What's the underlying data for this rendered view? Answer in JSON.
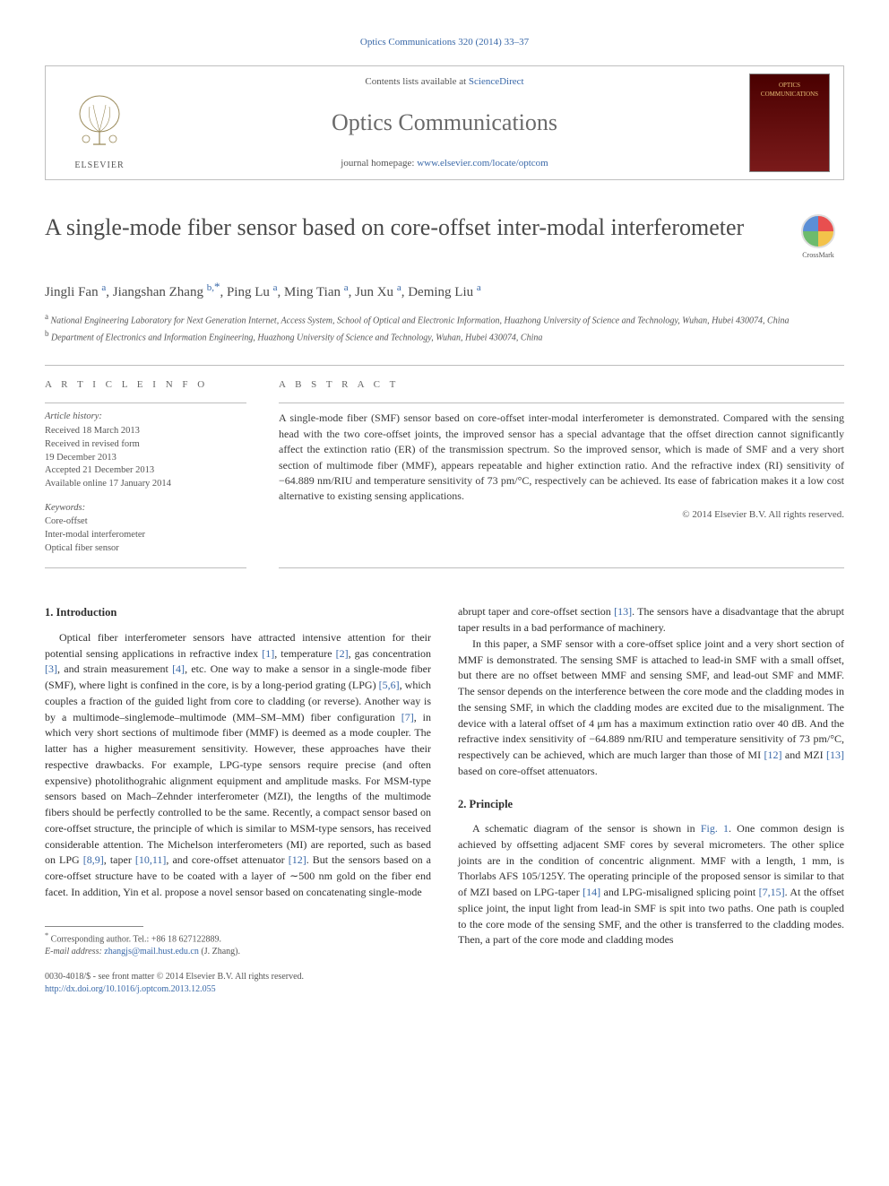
{
  "top_citation": "Optics Communications 320 (2014) 33–37",
  "header": {
    "contents_prefix": "Contents lists available at ",
    "contents_link": "ScienceDirect",
    "journal": "Optics Communications",
    "homepage_prefix": "journal homepage: ",
    "homepage_link": "www.elsevier.com/locate/optcom",
    "publisher": "ELSEVIER",
    "cover_label": "OPTICS COMMUNICATIONS"
  },
  "crossmark": "CrossMark",
  "title": "A single-mode fiber sensor based on core-offset inter-modal interferometer",
  "authors_html": "Jingli Fan <sup class='aff'>a</sup>, Jiangshan Zhang <sup class='aff'>b,</sup><sup class='corr'>*</sup>, Ping Lu <sup class='aff'>a</sup>, Ming Tian <sup class='aff'>a</sup>, Jun Xu <sup class='aff'>a</sup>, Deming Liu <sup class='aff'>a</sup>",
  "affiliations": {
    "a": "National Engineering Laboratory for Next Generation Internet, Access System, School of Optical and Electronic Information, Huazhong University of Science and Technology, Wuhan, Hubei 430074, China",
    "b": "Department of Electronics and Information Engineering, Huazhong University of Science and Technology, Wuhan, Hubei 430074, China"
  },
  "article_info": {
    "heading": "A R T I C L E  I N F O",
    "history_label": "Article history:",
    "history": [
      "Received 18 March 2013",
      "Received in revised form",
      "19 December 2013",
      "Accepted 21 December 2013",
      "Available online 17 January 2014"
    ],
    "keywords_label": "Keywords:",
    "keywords": [
      "Core-offset",
      "Inter-modal interferometer",
      "Optical fiber sensor"
    ]
  },
  "abstract": {
    "heading": "A B S T R A C T",
    "text": "A single-mode fiber (SMF) sensor based on core-offset inter-modal interferometer is demonstrated. Compared with the sensing head with the two core-offset joints, the improved sensor has a special advantage that the offset direction cannot significantly affect the extinction ratio (ER) of the transmission spectrum. So the improved sensor, which is made of SMF and a very short section of multimode fiber (MMF), appears repeatable and higher extinction ratio. And the refractive index (RI) sensitivity of −64.889 nm/RIU and temperature sensitivity of 73 pm/°C, respectively can be achieved. Its ease of fabrication makes it a low cost alternative to existing sensing applications.",
    "copyright": "© 2014 Elsevier B.V. All rights reserved."
  },
  "sections": {
    "intro_h": "1.  Introduction",
    "intro_p1": "Optical fiber interferometer sensors have attracted intensive attention for their potential sensing applications in refractive index [1], temperature [2], gas concentration [3], and strain measurement [4], etc. One way to make a sensor in a single-mode fiber (SMF), where light is confined in the core, is by a long-period grating (LPG) [5,6], which couples a fraction of the guided light from core to cladding (or reverse). Another way is by a multimode–singlemode–multimode (MM–SM–MM) fiber configuration [7], in which very short sections of multimode fiber (MMF) is deemed as a mode coupler. The latter has a higher measurement sensitivity. However, these approaches have their respective drawbacks. For example, LPG-type sensors require precise (and often expensive) photolithograhic alignment equipment and amplitude masks. For MSM-type sensors based on Mach–Zehnder interferometer (MZI), the lengths of the multimode fibers should be perfectly controlled to be the same. Recently, a compact sensor based on core-offset structure, the principle of which is similar to MSM-type sensors, has received considerable attention. The Michelson interferometers (MI) are reported, such as based on LPG [8,9], taper [10,11], and core-offset attenuator [12]. But the sensors based on a core-offset structure have to be coated with a layer of ∼500 nm gold on the fiber end facet. In addition, Yin et al. propose a novel sensor based on concatenating single-mode",
    "intro_p2_top": "abrupt taper and core-offset section [13]. The sensors have a disadvantage that the abrupt taper results in a bad performance of machinery.",
    "intro_p3": "In this paper, a SMF sensor with a core-offset splice joint and a very short section of MMF is demonstrated. The sensing SMF is attached to lead-in SMF with a small offset, but there are no offset between MMF and sensing SMF, and lead-out SMF and MMF. The sensor depends on the interference between the core mode and the cladding modes in the sensing SMF, in which the cladding modes are excited due to the misalignment. The device with a lateral offset of 4 μm has a maximum extinction ratio over 40 dB. And the refractive index sensitivity of −64.889 nm/RIU and temperature sensitivity of 73 pm/°C, respectively can be achieved, which are much larger than those of MI [12] and MZI [13] based on core-offset attenuators.",
    "principle_h": "2.  Principle",
    "principle_p1": "A schematic diagram of the sensor is shown in Fig. 1. One common design is achieved by offsetting adjacent SMF cores by several micrometers. The other splice joints are in the condition of concentric alignment. MMF with a length, 1 mm, is Thorlabs AFS 105/125Y. The operating principle of the proposed sensor is similar to that of MZI based on LPG-taper [14] and LPG-misaligned splicing point [7,15]. At the offset splice joint, the input light from lead-in SMF is spit into two paths. One path is coupled to the core mode of the sensing SMF, and the other is transferred to the cladding modes. Then, a part of the core mode and cladding modes"
  },
  "footnote": {
    "corr": "Corresponding author. Tel.: +86 18 627122889.",
    "email_label": "E-mail address: ",
    "email": "zhangjs@mail.hust.edu.cn",
    "email_suffix": " (J. Zhang)."
  },
  "meta": {
    "issn": "0030-4018/$ - see front matter © 2014 Elsevier B.V. All rights reserved.",
    "doi": "http://dx.doi.org/10.1016/j.optcom.2013.12.055"
  },
  "colors": {
    "link": "#3968a8",
    "text": "#3a3a3a",
    "muted": "#555555",
    "rule": "#bdbdbd"
  }
}
